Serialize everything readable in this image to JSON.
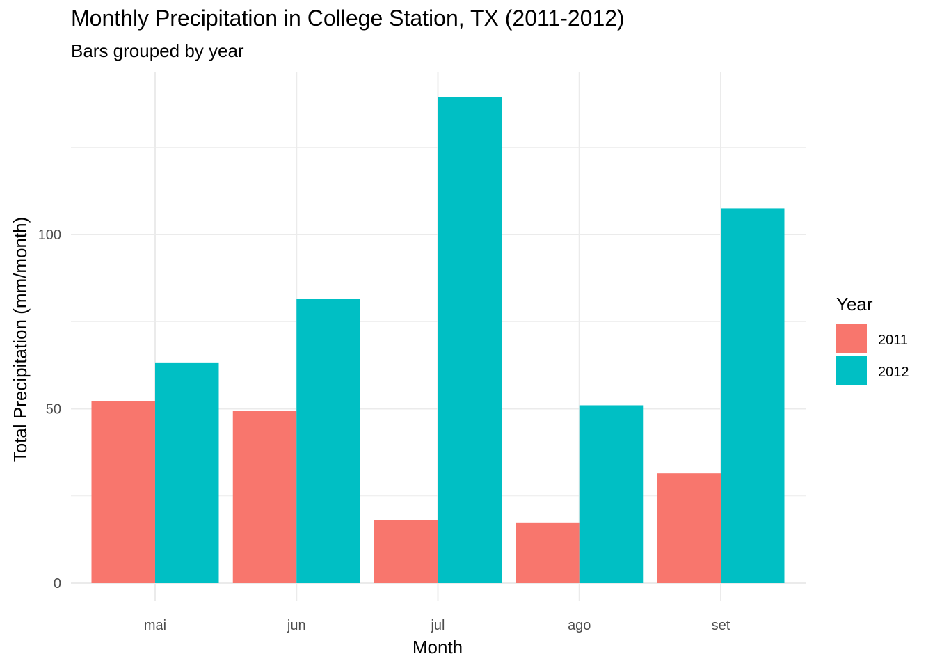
{
  "chart_data": {
    "type": "bar",
    "title": "Monthly Precipitation in College Station, TX (2011-2012)",
    "subtitle": "Bars grouped by year",
    "xlabel": "Month",
    "ylabel": "Total Precipitation (mm/month)",
    "categories": [
      "mai",
      "jun",
      "jul",
      "ago",
      "set"
    ],
    "series": [
      {
        "name": "2011",
        "color": "#F8766D",
        "values": [
          52.1,
          49.3,
          18.1,
          17.4,
          31.5
        ]
      },
      {
        "name": "2012",
        "color": "#00BFC4",
        "values": [
          63.3,
          81.6,
          139.4,
          51.0,
          107.5
        ]
      }
    ],
    "ylim": [
      0,
      146
    ],
    "yticks": [
      0,
      50,
      100
    ],
    "grid": true,
    "legend": {
      "title": "Year",
      "position": "right"
    }
  }
}
